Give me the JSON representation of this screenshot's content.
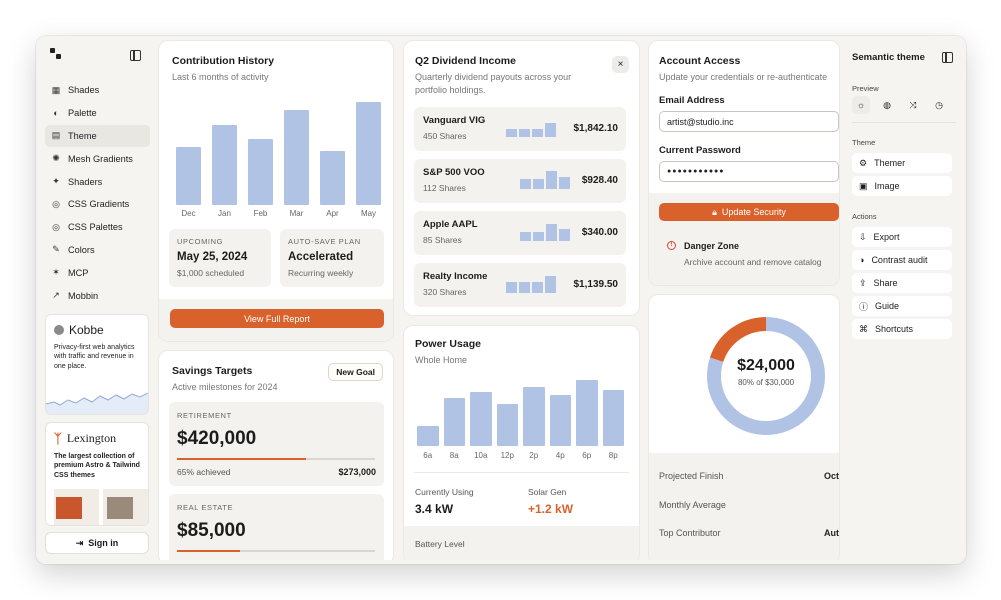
{
  "sidebar": {
    "items": [
      {
        "icon": "▦",
        "label": "Shades"
      },
      {
        "icon": "◐",
        "label": "Palette"
      },
      {
        "icon": "▤",
        "label": "Theme"
      },
      {
        "icon": "✺",
        "label": "Mesh Gradients"
      },
      {
        "icon": "✦",
        "label": "Shaders"
      },
      {
        "icon": "◎",
        "label": "CSS Gradients"
      },
      {
        "icon": "◎",
        "label": "CSS Palettes"
      },
      {
        "icon": "✎",
        "label": "Colors"
      },
      {
        "icon": "✶",
        "label": "MCP"
      },
      {
        "icon": "↗",
        "label": "Mobbin"
      }
    ],
    "ad1": {
      "title": "Kobbe",
      "text": "Privacy-first web analytics with traffic and revenue in one place."
    },
    "ad2": {
      "title": "Lexington",
      "text": "The largest collection of premium Astro & Tailwind CSS themes"
    },
    "signin": "Sign in"
  },
  "contribution": {
    "title": "Contribution History",
    "subtitle": "Last 6 months of activity",
    "months": [
      "Dec",
      "Jan",
      "Feb",
      "Mar",
      "Apr",
      "May"
    ],
    "values": [
      58,
      80,
      66,
      95,
      54,
      103
    ],
    "upcoming": {
      "k": "UPCOMING",
      "v": "May 25, 2024",
      "s": "$1,000 scheduled"
    },
    "autosave": {
      "k": "AUTO-SAVE PLAN",
      "v": "Accelerated",
      "s": "Recurring weekly"
    },
    "button": "View Full Report"
  },
  "savings": {
    "title": "Savings Targets",
    "subtitle": "Active milestones for 2024",
    "new_goal": "New Goal",
    "goals": [
      {
        "k": "RETIREMENT",
        "v": "$420,000",
        "pct": "65% achieved",
        "amt": "$273,000",
        "progress": 0.65
      },
      {
        "k": "REAL ESTATE",
        "v": "$85,000",
        "progress": 0.32
      }
    ]
  },
  "dividend": {
    "title": "Q2 Dividend Income",
    "subtitle": "Quarterly dividend payouts across your portfolio holdings.",
    "close": "×",
    "rows": [
      {
        "name": "Vanguard VIG",
        "shares": "450 Shares",
        "amount": "$1,842.10",
        "bars": [
          8,
          8,
          8,
          14
        ]
      },
      {
        "name": "S&P 500 VOO",
        "shares": "112 Shares",
        "amount": "$928.40",
        "bars": [
          10,
          10,
          18,
          12
        ]
      },
      {
        "name": "Apple AAPL",
        "shares": "85 Shares",
        "amount": "$340.00",
        "bars": [
          9,
          9,
          17,
          12
        ]
      },
      {
        "name": "Realty Income",
        "shares": "320 Shares",
        "amount": "$1,139.50",
        "bars": [
          11,
          11,
          11,
          17
        ]
      }
    ]
  },
  "power": {
    "title": "Power Usage",
    "subtitle": "Whole Home",
    "hours": [
      "6a",
      "8a",
      "10a",
      "12p",
      "2p",
      "4p",
      "6p",
      "8p"
    ],
    "values": [
      20,
      48,
      54,
      42,
      59,
      51,
      66,
      56
    ],
    "using_label": "Currently Using",
    "using": "3.4 kW",
    "solar_label": "Solar Gen",
    "solar": "+1.2 kW",
    "battery": "Battery Level"
  },
  "account": {
    "title": "Account Access",
    "subtitle": "Update your credentials or re-authenticate",
    "email_label": "Email Address",
    "email": "artist@studio.inc",
    "password_label": "Current Password",
    "password": "●●●●●●●●●●●",
    "button": "Update Security",
    "danger_title": "Danger Zone",
    "danger_text": "Archive account and remove catalog"
  },
  "donut": {
    "value": "$24,000",
    "sub": "80% of $30,000",
    "fraction": 0.8,
    "stats": [
      {
        "label": "Projected Finish",
        "value": "Oct"
      },
      {
        "label": "Monthly Average",
        "value": ""
      },
      {
        "label": "Top Contributor",
        "value": "Aut"
      }
    ]
  },
  "right": {
    "title": "Semantic theme",
    "preview": "Preview",
    "theme": "Theme",
    "actions": "Actions",
    "theme_items": [
      {
        "icon": "⚙",
        "label": "Themer"
      },
      {
        "icon": "▣",
        "label": "Image"
      }
    ],
    "action_items": [
      {
        "icon": "⇩",
        "label": "Export"
      },
      {
        "icon": "◑",
        "label": "Contrast audit"
      },
      {
        "icon": "⇪",
        "label": "Share"
      },
      {
        "icon": "ⓘ",
        "label": "Guide"
      },
      {
        "icon": "⌘",
        "label": "Shortcuts"
      }
    ]
  },
  "colors": {
    "accent": "#d9622c",
    "bar": "#b1c3e4"
  }
}
